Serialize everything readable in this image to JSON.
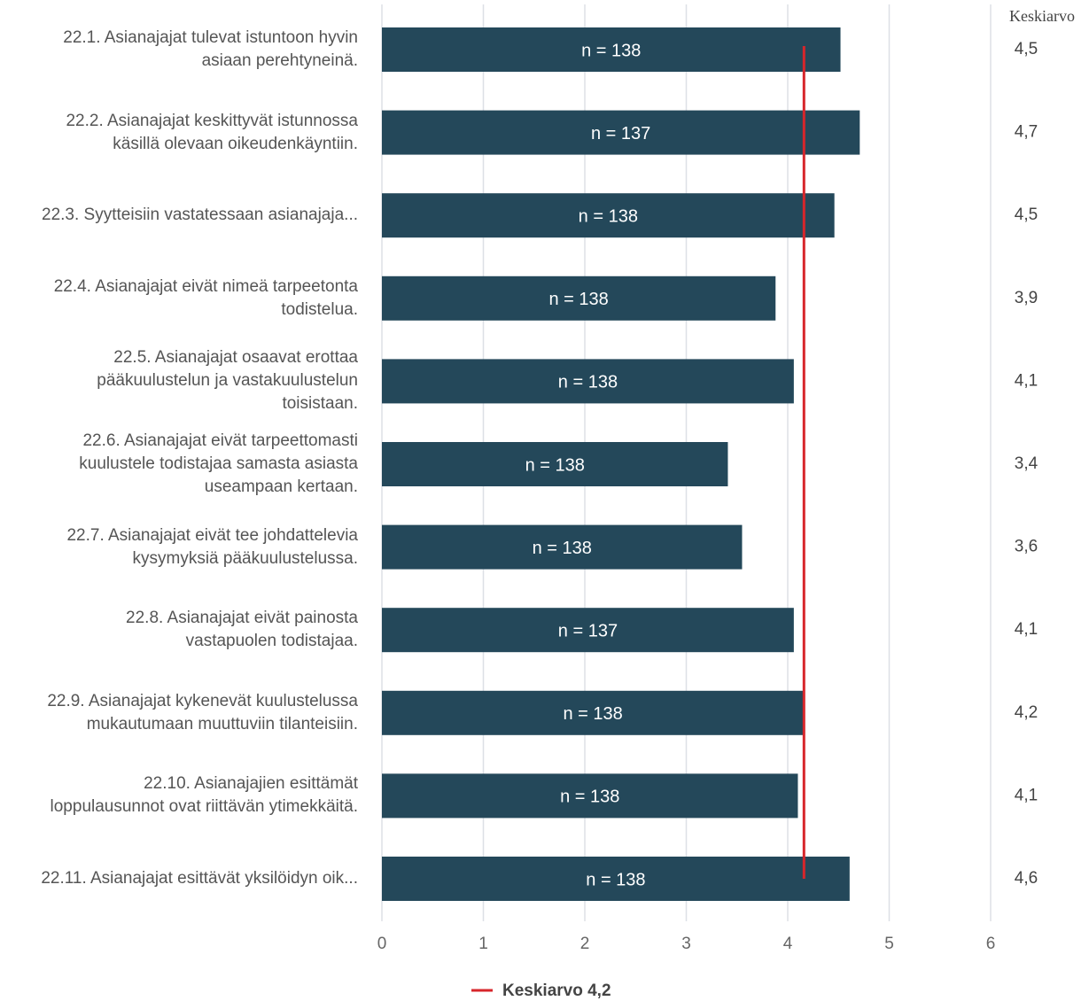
{
  "chart_data": {
    "type": "bar",
    "orientation": "horizontal",
    "categories": [
      "22.1. Asianajajat tulevat istuntoon hyvin\nasiaan perehtyneinä.",
      "22.2. Asianajajat keskittyvät istunnossa\nkäsillä olevaan oikeudenkäyntiin.",
      "22.3. Syytteisiin vastatessaan asianajaja...",
      "22.4. Asianajajat eivät nimeä tarpeetonta\ntodistelua.",
      "22.5. Asianajajat osaavat erottaa\npääkuulustelun ja vastakuulustelun\ntoisistaan.",
      "22.6. Asianajajat eivät tarpeettomasti\nkuulustele todistajaa samasta asiasta\nuseampaan kertaan.",
      "22.7. Asianajajat eivät tee johdattelevia\nkysymyksiä pääkuulustelussa.",
      "22.8. Asianajajat eivät painosta\nvastapuolen todistajaa.",
      "22.9. Asianajajat kykenevät kuulustelussa\nmukautumaan muuttuviin tilanteisiin.",
      "22.10. Asianajajien esittämät\nloppulausunnot ovat riittävän ytimekkäitä.",
      "22.11. Asianajajat esittävät yksilöidyn oik..."
    ],
    "values": [
      4.52,
      4.71,
      4.46,
      3.88,
      4.06,
      3.41,
      3.55,
      4.06,
      4.16,
      4.1,
      4.61
    ],
    "value_labels": [
      "4,5",
      "4,7",
      "4,5",
      "3,9",
      "4,1",
      "3,4",
      "3,6",
      "4,1",
      "4,2",
      "4,1",
      "4,6"
    ],
    "n_labels": [
      "n = 138",
      "n = 137",
      "n = 138",
      "n = 138",
      "n = 138",
      "n = 138",
      "n = 138",
      "n = 137",
      "n = 138",
      "n = 138",
      "n = 138"
    ],
    "value_column_title": "Keskiarvo",
    "mean": {
      "value": 4.16,
      "label": "Keskiarvo 4,2",
      "color": "#d7262b"
    },
    "color": "#24485a",
    "xlim": [
      0,
      6
    ],
    "xticks": [
      0,
      1,
      2,
      3,
      4,
      5,
      6
    ],
    "grid": true
  }
}
